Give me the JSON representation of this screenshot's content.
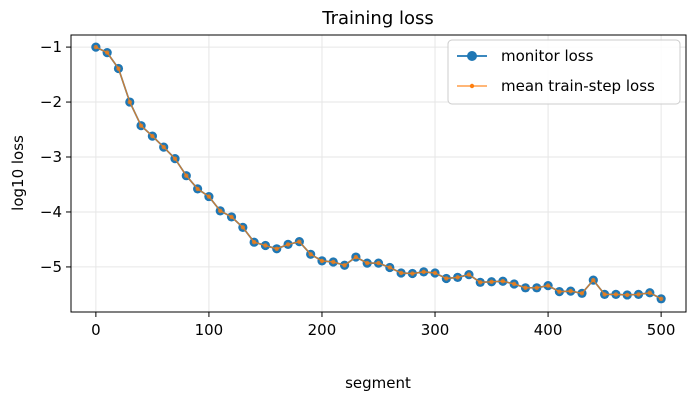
{
  "chart_data": {
    "type": "line",
    "title": "Training loss",
    "xlabel": "segment",
    "ylabel": "log10 loss",
    "xlim": [
      -22,
      522
    ],
    "ylim": [
      -5.82,
      -0.78
    ],
    "xticks": [
      0,
      100,
      200,
      300,
      400,
      500
    ],
    "yticks": [
      -1,
      -2,
      -3,
      -4,
      -5
    ],
    "ytick_labels": [
      "−1",
      "−2",
      "−3",
      "−4",
      "−5"
    ],
    "grid": true,
    "legend_position": "top-right",
    "x": [
      0,
      10,
      20,
      30,
      40,
      50,
      60,
      70,
      80,
      90,
      100,
      110,
      120,
      130,
      140,
      150,
      160,
      170,
      180,
      190,
      200,
      210,
      220,
      230,
      240,
      250,
      260,
      270,
      280,
      290,
      300,
      310,
      320,
      330,
      340,
      350,
      360,
      370,
      380,
      390,
      400,
      410,
      420,
      430,
      440,
      450,
      460,
      470,
      480,
      490,
      500
    ],
    "series": [
      {
        "name": "monitor loss",
        "color": "#1f77b4",
        "values": [
          -1.0,
          -1.1,
          -1.39,
          -2.0,
          -2.43,
          -2.62,
          -2.82,
          -3.03,
          -3.34,
          -3.58,
          -3.72,
          -3.98,
          -4.09,
          -4.28,
          -4.55,
          -4.61,
          -4.67,
          -4.59,
          -4.54,
          -4.77,
          -4.89,
          -4.91,
          -4.97,
          -4.82,
          -4.93,
          -4.93,
          -5.01,
          -5.11,
          -5.12,
          -5.09,
          -5.11,
          -5.21,
          -5.19,
          -5.14,
          -5.28,
          -5.27,
          -5.26,
          -5.31,
          -5.38,
          -5.38,
          -5.34,
          -5.45,
          -5.44,
          -5.48,
          -5.24,
          -5.5,
          -5.5,
          -5.51,
          -5.5,
          -5.47,
          -5.58
        ]
      },
      {
        "name": "mean train-step loss",
        "color": "#ff7f0e",
        "values": [
          -1.0,
          -1.1,
          -1.39,
          -2.0,
          -2.43,
          -2.62,
          -2.82,
          -3.03,
          -3.34,
          -3.58,
          -3.72,
          -3.98,
          -4.09,
          -4.28,
          -4.55,
          -4.61,
          -4.67,
          -4.59,
          -4.54,
          -4.77,
          -4.89,
          -4.91,
          -4.97,
          -4.82,
          -4.93,
          -4.93,
          -5.01,
          -5.11,
          -5.12,
          -5.09,
          -5.11,
          -5.21,
          -5.19,
          -5.14,
          -5.28,
          -5.27,
          -5.26,
          -5.31,
          -5.38,
          -5.38,
          -5.34,
          -5.45,
          -5.44,
          -5.48,
          -5.24,
          -5.5,
          -5.5,
          -5.51,
          -5.5,
          -5.47,
          -5.58
        ]
      }
    ]
  }
}
